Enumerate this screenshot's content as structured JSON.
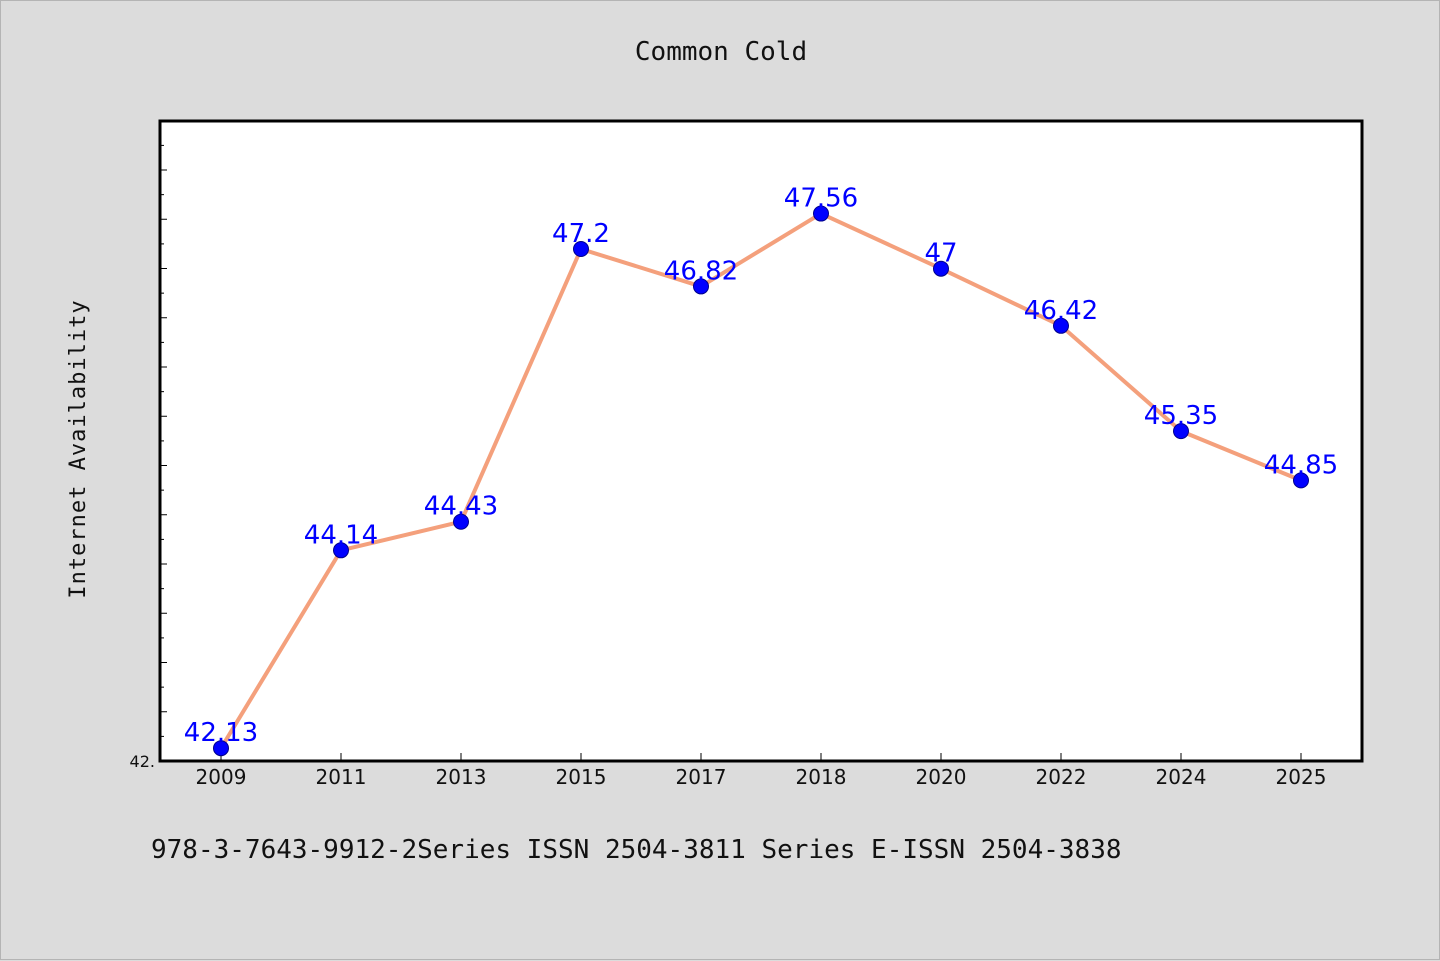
{
  "chart_data": {
    "type": "line",
    "title": "Common Cold",
    "xlabel": "",
    "ylabel": "Internet Availability",
    "categories": [
      "2009",
      "2011",
      "2013",
      "2015",
      "2017",
      "2018",
      "2020",
      "2022",
      "2024",
      "2025"
    ],
    "series": [
      {
        "values": [
          42.13,
          44.14,
          44.43,
          47.2,
          46.82,
          47.56,
          47.0,
          46.42,
          45.35,
          44.85
        ]
      }
    ],
    "data_labels": [
      "42.13",
      "44.14",
      "44.43",
      "47.2",
      "46.82",
      "47.56",
      "47",
      "46.42",
      "45.35",
      "44.85"
    ],
    "ylim": [
      42.0,
      48.5
    ],
    "y_tick_label": "42.",
    "grid": false,
    "legend": "none",
    "colors": {
      "line": "#f4a07c",
      "marker": "#0000ff",
      "data_label": "#0000ff",
      "figure_bg": "#dcdcdc",
      "plot_bg": "#ffffff"
    }
  },
  "footer": {
    "text": "978-3-7643-9912-2Series ISSN 2504-3811 Series E-ISSN 2504-3838"
  }
}
